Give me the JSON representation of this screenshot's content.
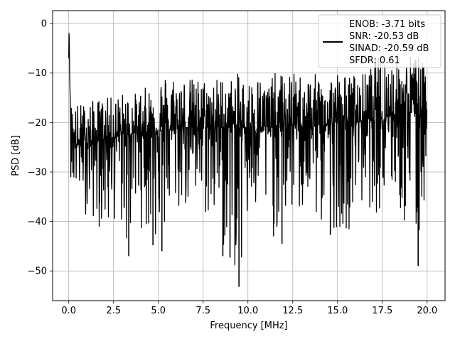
{
  "chart_data": {
    "type": "line",
    "title": "",
    "xlabel": "Frequency [MHz]",
    "ylabel": "PSD [dB]",
    "xlim": [
      -0.9,
      21.0
    ],
    "ylim": [
      -56.0,
      2.6
    ],
    "grid": true,
    "legend_position": "top-right",
    "x_ticks": [
      0.0,
      2.5,
      5.0,
      7.5,
      10.0,
      12.5,
      15.0,
      17.5,
      20.0
    ],
    "x_tick_labels": [
      "0.0",
      "2.5",
      "5.0",
      "7.5",
      "10.0",
      "12.5",
      "15.0",
      "17.5",
      "20.0"
    ],
    "y_ticks": [
      0,
      -10,
      -20,
      -30,
      -40,
      -50
    ],
    "y_tick_labels": [
      "0",
      "−10",
      "−20",
      "−30",
      "−40",
      "−50"
    ],
    "series": [
      {
        "name": "",
        "color": "#000000",
        "x": [
          0.0,
          0.02,
          0.05,
          0.08,
          0.12,
          0.16,
          0.2,
          0.3,
          0.5,
          0.8,
          1.1,
          1.4,
          1.8,
          2.2,
          2.6,
          3.0,
          3.35,
          3.7,
          4.2,
          4.7,
          5.2,
          5.7,
          6.2,
          6.7,
          7.2,
          7.6,
          8.1,
          8.6,
          9.0,
          9.5,
          10.0,
          10.5,
          11.0,
          11.5,
          12.0,
          12.5,
          13.0,
          13.5,
          14.0,
          14.5,
          15.0,
          15.5,
          16.0,
          16.5,
          17.0,
          17.5,
          18.0,
          18.5,
          19.0,
          19.5,
          20.0
        ],
        "y_mean": [
          -7.0,
          0.0,
          -10.0,
          -15.0,
          -20.0,
          -22.0,
          -23.0,
          -24.0,
          -24.5,
          -24.5,
          -24.0,
          -24.0,
          -23.5,
          -23.0,
          -23.0,
          -22.5,
          -22.5,
          -22.0,
          -22.0,
          -21.5,
          -21.5,
          -21.5,
          -21.0,
          -21.0,
          -21.0,
          -21.0,
          -21.0,
          -21.0,
          -21.0,
          -21.0,
          -21.0,
          -21.0,
          -21.0,
          -21.0,
          -21.0,
          -20.5,
          -20.5,
          -20.5,
          -20.5,
          -20.5,
          -20.0,
          -20.0,
          -20.0,
          -19.5,
          -19.0,
          -19.0,
          -18.5,
          -18.0,
          -18.0,
          -17.5,
          -17.5
        ],
        "y_max": [
          -2.0,
          0.0,
          -6.0,
          -14.5,
          -16.0,
          -16.5,
          -16.0,
          -16.5,
          -16.0,
          -16.0,
          -15.5,
          -15.5,
          -15.0,
          -15.0,
          -14.5,
          -14.0,
          -14.0,
          -14.0,
          -13.0,
          -12.5,
          -10.0,
          -10.0,
          -10.0,
          -11.0,
          -11.0,
          -11.0,
          -11.0,
          -10.5,
          -11.0,
          -10.0,
          -11.5,
          -10.0,
          -12.0,
          -10.0,
          -10.0,
          -10.0,
          -10.0,
          -10.5,
          -10.0,
          -10.0,
          -9.5,
          -10.5,
          -10.0,
          -10.0,
          -8.0,
          -5.0,
          -7.0,
          -8.0,
          -6.0,
          -6.0,
          -10.0
        ],
        "y_min": [
          -10.0,
          -5.0,
          -25.0,
          -32.0,
          -31.0,
          -33.0,
          -35.0,
          -35.0,
          -37.0,
          -36.0,
          -41.5,
          -40.0,
          -42.0,
          -43.5,
          -40.0,
          -44.0,
          -47.0,
          -40.0,
          -42.0,
          -44.5,
          -46.0,
          -40.0,
          -39.0,
          -38.0,
          -42.0,
          -40.0,
          -43.0,
          -47.0,
          -47.5,
          -53.0,
          -45.0,
          -41.0,
          -42.0,
          -44.0,
          -41.0,
          -40.0,
          -40.0,
          -41.0,
          -42.0,
          -43.0,
          -41.0,
          -42.5,
          -39.0,
          -38.0,
          -37.5,
          -40.0,
          -36.0,
          -39.0,
          -47.0,
          -49.0,
          -32.0
        ],
        "spikes": [
          {
            "x": 3.35,
            "y": -47.0
          },
          {
            "x": 4.7,
            "y": -44.8
          },
          {
            "x": 5.2,
            "y": -46.0
          },
          {
            "x": 8.6,
            "y": -47.0
          },
          {
            "x": 9.0,
            "y": -47.3
          },
          {
            "x": 9.5,
            "y": -53.2
          },
          {
            "x": 11.9,
            "y": -44.5
          },
          {
            "x": 14.6,
            "y": -42.7
          },
          {
            "x": 19.5,
            "y": -49.0
          }
        ]
      }
    ],
    "legend": {
      "lines": [
        "ENOB: -3.71 bits",
        "SNR: -20.53 dB",
        "SINAD: -20.59 dB",
        "SFDR: 0.61"
      ]
    }
  }
}
